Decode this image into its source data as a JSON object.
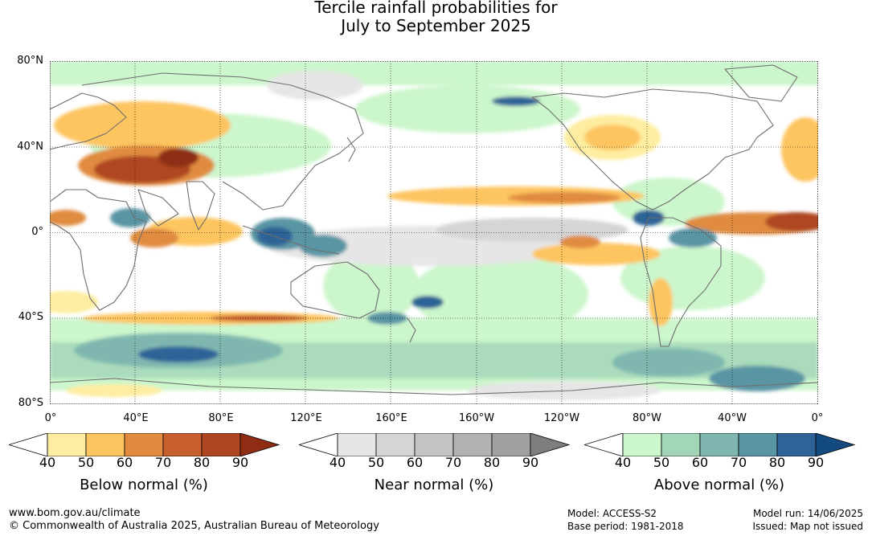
{
  "title_line1": "Tercile rainfall probabilities for",
  "title_line2": "July to September 2025",
  "lat_labels": [
    "80°N",
    "40°N",
    "0°",
    "40°S",
    "80°S"
  ],
  "lon_labels": [
    "0°",
    "40°E",
    "80°E",
    "120°E",
    "160°E",
    "160°W",
    "120°W",
    "80°W",
    "40°W",
    "0°"
  ],
  "legends": [
    {
      "title": "Below normal (%)",
      "ticks": [
        "40",
        "50",
        "60",
        "70",
        "80",
        "90"
      ],
      "colors": [
        "#ffffff",
        "#feeda0",
        "#fdc560",
        "#e08b40",
        "#c8602e",
        "#ae4622",
        "#8e2d14"
      ]
    },
    {
      "title": "Near normal (%)",
      "ticks": [
        "40",
        "50",
        "60",
        "70",
        "80",
        "90"
      ],
      "colors": [
        "#ffffff",
        "#e6e6e6",
        "#d5d5d5",
        "#c4c4c4",
        "#b2b2b2",
        "#a0a0a0",
        "#7e7e7e"
      ]
    },
    {
      "title": "Above normal (%)",
      "ticks": [
        "40",
        "50",
        "60",
        "70",
        "80",
        "90"
      ],
      "colors": [
        "#ffffff",
        "#ccf6cc",
        "#a3d6b8",
        "#7fb7b0",
        "#5a95a4",
        "#2f6397",
        "#134a80"
      ]
    }
  ],
  "footer": {
    "site": "www.bom.gov.au/climate",
    "copyright": "© Commonwealth of Australia 2025, Australian Bureau of Meteorology",
    "model": "Model: ACCESS-S2",
    "base_period": "Base period: 1981-2018",
    "model_run": "Model run: 14/06/2025",
    "issued": "Issued: Map not issued"
  }
}
